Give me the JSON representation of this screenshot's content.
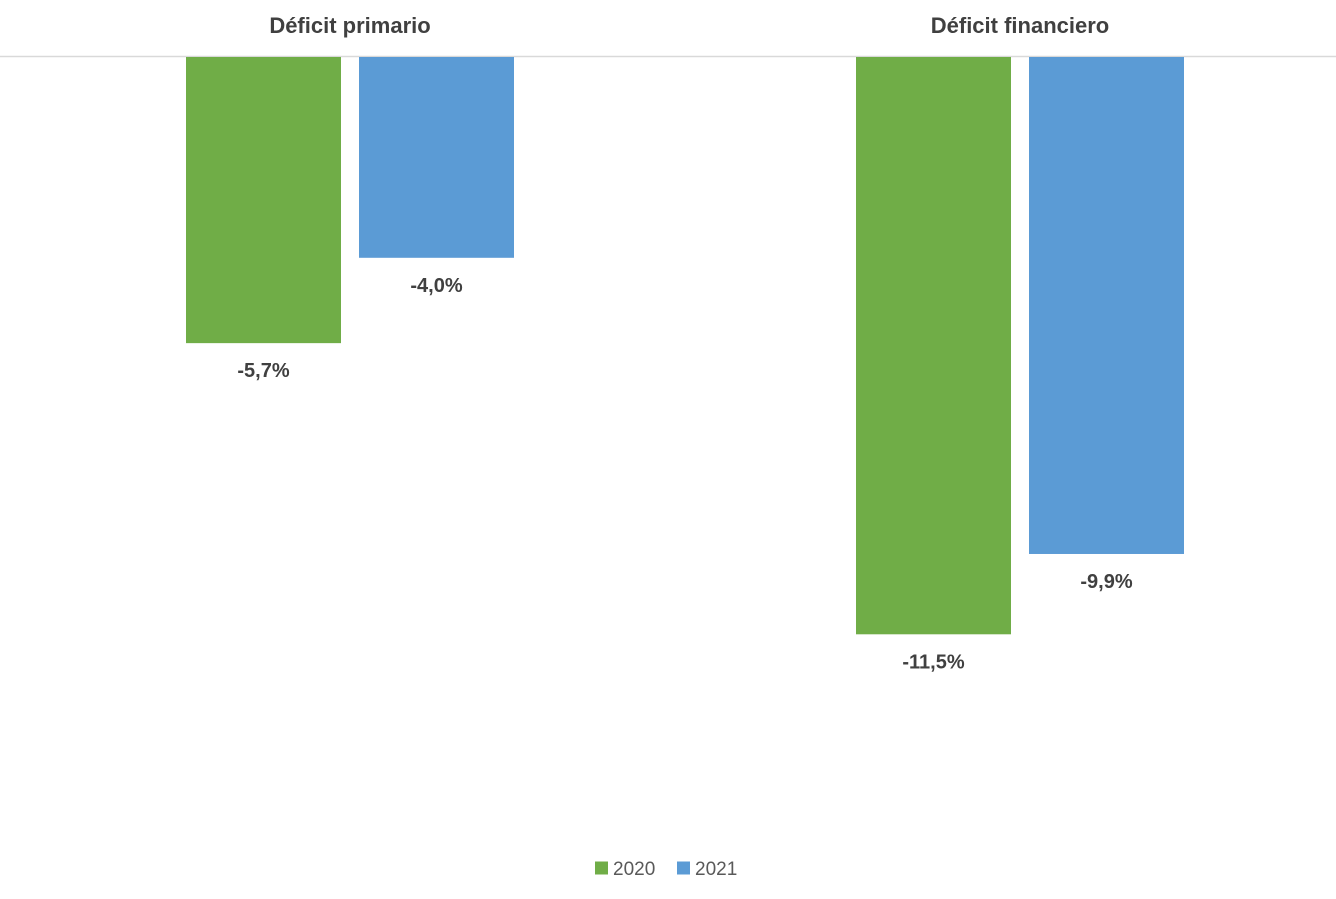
{
  "chart_data": {
    "type": "bar",
    "categories": [
      "Déficit primario",
      "Déficit financiero"
    ],
    "series": [
      {
        "name": "2020",
        "values": [
          -5.7,
          -11.5
        ],
        "labels": [
          "-5,7%",
          "-11,5%"
        ],
        "color": "#70AD47"
      },
      {
        "name": "2021",
        "values": [
          -4.0,
          -9.9
        ],
        "labels": [
          "-4,0%",
          "-9,9%"
        ],
        "color": "#5B9BD5"
      }
    ],
    "title": "",
    "xlabel": "",
    "ylabel": "",
    "category_axis_position": "top",
    "value_axis_visible": false,
    "grid": false,
    "legend": "bottom-center"
  }
}
